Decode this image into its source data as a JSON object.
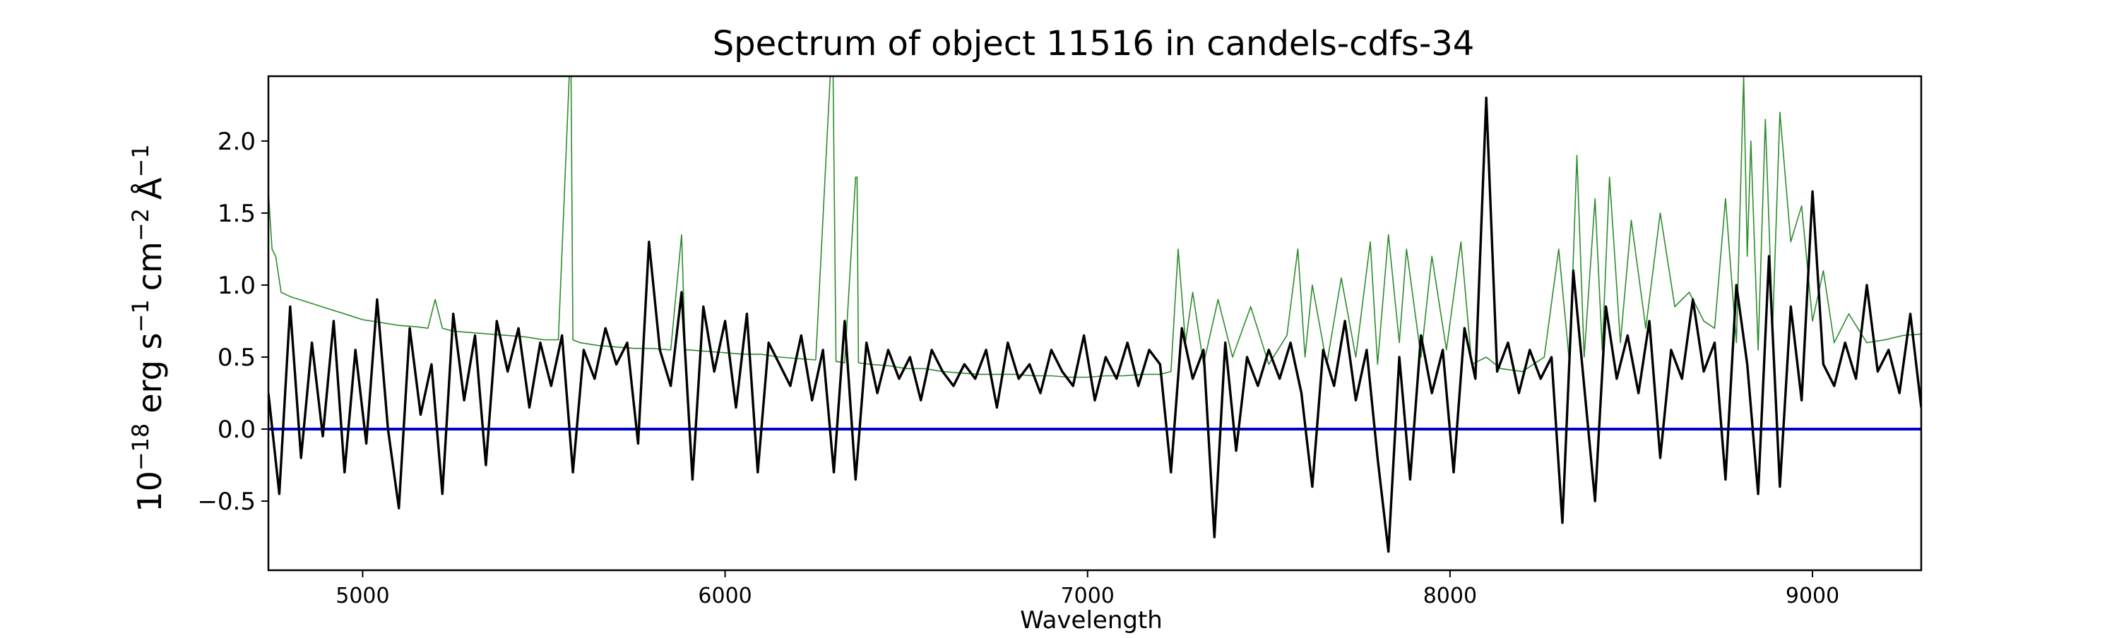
{
  "chart_data": {
    "type": "line",
    "title": "Spectrum of object 11516 in candels-cdfs-34",
    "xlabel": "Wavelength",
    "ylabel": "10",
    "ylabel_exp": "−18",
    "ylabel_units": "erg s",
    "ylabel_s_exp": "−1",
    "ylabel_cm": "cm",
    "ylabel_cm_exp": "−2",
    "ylabel_A": "Å",
    "ylabel_A_exp": "−1",
    "xlim": [
      4740,
      9300
    ],
    "ylim": [
      -0.98,
      2.45
    ],
    "xticks": [
      5000,
      6000,
      7000,
      8000,
      9000
    ],
    "xtick_labels": [
      "5000",
      "6000",
      "7000",
      "8000",
      "9000"
    ],
    "yticks": [
      -0.5,
      0.0,
      0.5,
      1.0,
      1.5,
      2.0
    ],
    "ytick_labels": [
      "−0.5",
      "0.0",
      "0.5",
      "1.0",
      "1.5",
      "2.0"
    ],
    "grid": false,
    "colors": {
      "flux": "#000000",
      "sky": "#2e8b2e",
      "zero": "#0000cc"
    },
    "series": [
      {
        "role": "flux",
        "x": [
          4740,
          4770,
          4800,
          4830,
          4860,
          4890,
          4920,
          4950,
          4980,
          5010,
          5040,
          5070,
          5100,
          5130,
          5160,
          5190,
          5220,
          5250,
          5280,
          5310,
          5340,
          5370,
          5400,
          5430,
          5460,
          5490,
          5520,
          5550,
          5580,
          5610,
          5640,
          5670,
          5700,
          5730,
          5760,
          5790,
          5820,
          5850,
          5880,
          5910,
          5940,
          5970,
          6000,
          6030,
          6060,
          6090,
          6120,
          6150,
          6180,
          6210,
          6240,
          6270,
          6300,
          6330,
          6360,
          6390,
          6420,
          6450,
          6480,
          6510,
          6540,
          6570,
          6600,
          6630,
          6660,
          6690,
          6720,
          6750,
          6780,
          6810,
          6840,
          6870,
          6900,
          6930,
          6960,
          6990,
          7020,
          7050,
          7080,
          7110,
          7140,
          7170,
          7200,
          7230,
          7260,
          7290,
          7320,
          7350,
          7380,
          7410,
          7440,
          7470,
          7500,
          7530,
          7560,
          7590,
          7620,
          7650,
          7680,
          7710,
          7740,
          7770,
          7800,
          7830,
          7860,
          7890,
          7920,
          7950,
          7980,
          8010,
          8040,
          8070,
          8100,
          8130,
          8160,
          8190,
          8220,
          8250,
          8280,
          8310,
          8340,
          8370,
          8400,
          8430,
          8460,
          8490,
          8520,
          8550,
          8580,
          8610,
          8640,
          8670,
          8700,
          8730,
          8760,
          8790,
          8820,
          8850,
          8880,
          8910,
          8940,
          8970,
          9000,
          9030,
          9060,
          9090,
          9120,
          9150,
          9180,
          9210,
          9240,
          9270,
          9300
        ],
        "y": [
          0.25,
          -0.45,
          0.85,
          -0.2,
          0.6,
          -0.05,
          0.75,
          -0.3,
          0.55,
          -0.1,
          0.9,
          0.0,
          -0.55,
          0.7,
          0.1,
          0.45,
          -0.45,
          0.8,
          0.2,
          0.65,
          -0.25,
          0.75,
          0.4,
          0.7,
          0.15,
          0.6,
          0.3,
          0.65,
          -0.3,
          0.55,
          0.35,
          0.7,
          0.45,
          0.6,
          -0.1,
          1.3,
          0.55,
          0.3,
          0.95,
          -0.35,
          0.85,
          0.4,
          0.75,
          0.15,
          0.8,
          -0.3,
          0.6,
          0.45,
          0.3,
          0.65,
          0.2,
          0.55,
          -0.3,
          0.75,
          -0.35,
          0.6,
          0.25,
          0.55,
          0.35,
          0.5,
          0.2,
          0.55,
          0.4,
          0.3,
          0.45,
          0.35,
          0.55,
          0.15,
          0.6,
          0.35,
          0.45,
          0.25,
          0.55,
          0.4,
          0.3,
          0.65,
          0.2,
          0.5,
          0.35,
          0.6,
          0.3,
          0.55,
          0.45,
          -0.3,
          0.7,
          0.35,
          0.55,
          -0.75,
          0.6,
          -0.15,
          0.5,
          0.3,
          0.55,
          0.35,
          0.6,
          0.25,
          -0.4,
          0.55,
          0.3,
          0.75,
          0.2,
          0.55,
          -0.2,
          -0.85,
          0.5,
          -0.35,
          0.65,
          0.25,
          0.55,
          -0.3,
          0.7,
          0.35,
          2.3,
          0.4,
          0.6,
          0.25,
          0.55,
          0.35,
          0.5,
          -0.65,
          1.1,
          0.3,
          -0.5,
          0.85,
          0.35,
          0.65,
          0.25,
          0.75,
          -0.2,
          0.55,
          0.35,
          0.9,
          0.4,
          0.6,
          -0.35,
          1.0,
          0.45,
          -0.45,
          1.2,
          -0.4,
          0.85,
          0.2,
          1.65,
          0.45,
          0.3,
          0.6,
          0.35,
          1.0,
          0.4,
          0.55,
          0.25,
          0.8,
          0.15
        ]
      },
      {
        "role": "sky",
        "x": [
          4740,
          4750,
          4760,
          4775,
          4800,
          4850,
          4900,
          4950,
          5000,
          5050,
          5100,
          5150,
          5180,
          5200,
          5220,
          5250,
          5300,
          5350,
          5400,
          5450,
          5500,
          5540,
          5570,
          5575,
          5580,
          5600,
          5650,
          5700,
          5750,
          5800,
          5850,
          5880,
          5890,
          5900,
          5950,
          6000,
          6050,
          6100,
          6150,
          6200,
          6250,
          6290,
          6298,
          6306,
          6330,
          6360,
          6364,
          6368,
          6400,
          6450,
          6500,
          6550,
          6600,
          6650,
          6700,
          6750,
          6800,
          6850,
          6900,
          6950,
          7000,
          7050,
          7100,
          7150,
          7200,
          7230,
          7250,
          7270,
          7290,
          7320,
          7360,
          7400,
          7450,
          7500,
          7550,
          7580,
          7600,
          7620,
          7660,
          7700,
          7740,
          7780,
          7800,
          7830,
          7860,
          7880,
          7920,
          7950,
          7990,
          8030,
          8060,
          8100,
          8140,
          8200,
          8260,
          8300,
          8330,
          8350,
          8370,
          8400,
          8420,
          8440,
          8470,
          8500,
          8540,
          8580,
          8620,
          8660,
          8700,
          8730,
          8760,
          8790,
          8810,
          8820,
          8830,
          8850,
          8870,
          8890,
          8910,
          8940,
          8970,
          9000,
          9030,
          9060,
          9100,
          9150,
          9200,
          9250,
          9300
        ],
        "y": [
          1.65,
          1.25,
          1.2,
          0.95,
          0.92,
          0.88,
          0.84,
          0.8,
          0.76,
          0.74,
          0.72,
          0.71,
          0.7,
          0.9,
          0.7,
          0.68,
          0.67,
          0.66,
          0.65,
          0.64,
          0.62,
          0.62,
          2.45,
          2.45,
          0.62,
          0.6,
          0.58,
          0.57,
          0.56,
          0.56,
          0.55,
          1.35,
          0.55,
          0.55,
          0.54,
          0.53,
          0.52,
          0.52,
          0.5,
          0.49,
          0.48,
          2.45,
          2.45,
          0.47,
          0.46,
          1.75,
          1.75,
          0.46,
          0.45,
          0.44,
          0.42,
          0.42,
          0.4,
          0.39,
          0.38,
          0.38,
          0.38,
          0.37,
          0.37,
          0.36,
          0.36,
          0.37,
          0.37,
          0.38,
          0.38,
          0.4,
          1.25,
          0.6,
          0.95,
          0.45,
          0.9,
          0.5,
          0.85,
          0.45,
          0.65,
          1.25,
          0.5,
          1.0,
          0.45,
          1.05,
          0.5,
          1.3,
          0.45,
          1.35,
          0.6,
          1.25,
          0.5,
          1.2,
          0.55,
          1.3,
          0.45,
          0.5,
          0.42,
          0.4,
          0.5,
          1.25,
          0.45,
          1.9,
          0.5,
          1.6,
          0.55,
          1.75,
          0.6,
          1.45,
          0.7,
          1.5,
          0.85,
          0.95,
          0.75,
          0.7,
          1.6,
          0.6,
          2.45,
          1.2,
          2.0,
          0.55,
          2.15,
          0.7,
          2.2,
          1.3,
          1.55,
          0.75,
          1.1,
          0.6,
          0.8,
          0.6,
          0.62,
          0.65,
          0.66
        ]
      },
      {
        "role": "zero",
        "x": [
          4740,
          9300
        ],
        "y": [
          0.0,
          0.0
        ]
      }
    ]
  }
}
